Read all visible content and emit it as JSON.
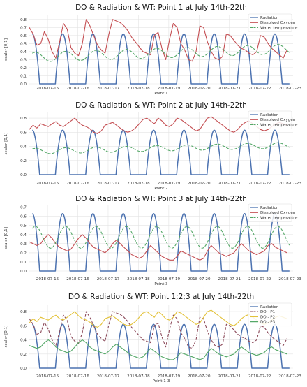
{
  "chart_data": [
    {
      "type": "line",
      "title": "DO & Radiation & WT: Point 1  at July 14th-22th",
      "xlabel": "Point 1",
      "ylabel": "scaler [0,1]",
      "x_ticks": [
        "2018-07-15",
        "2018-07-16",
        "2018-07-17",
        "2018-07-18",
        "2018-07-19",
        "2018-07-20",
        "2018-07-21",
        "2018-07-22",
        "2018-07-23"
      ],
      "y_ticks": [
        "0.0",
        "0.1",
        "0.2",
        "0.3",
        "0.4",
        "0.5",
        "0.6",
        "0.7",
        "0.8"
      ],
      "xlim_days": [
        14.4,
        23.1
      ],
      "ylim": [
        0,
        0.85
      ],
      "legend_position": "top-right",
      "series": [
        {
          "name": "Radiation",
          "color": "#4c72b0",
          "style": "solid",
          "kind": "radiation",
          "amplitude": 0.62
        },
        {
          "name": "Dissolved Oxygen",
          "color": "#c44e52",
          "style": "solid",
          "kind": "do",
          "start_day": 14.4,
          "step": 0.125,
          "values": [
            0.7,
            0.62,
            0.48,
            0.5,
            0.65,
            0.55,
            0.4,
            0.32,
            0.52,
            0.75,
            0.68,
            0.45,
            0.38,
            0.35,
            0.5,
            0.8,
            0.72,
            0.6,
            0.48,
            0.42,
            0.38,
            0.62,
            0.8,
            0.78,
            0.76,
            0.72,
            0.66,
            0.58,
            0.52,
            0.46,
            0.4,
            0.38,
            0.36,
            0.6,
            0.64,
            0.44,
            0.3,
            0.55,
            0.75,
            0.7,
            0.5,
            0.42,
            0.3,
            0.28,
            0.4,
            0.72,
            0.7,
            0.52,
            0.4,
            0.32,
            0.3,
            0.34,
            0.62,
            0.6,
            0.54,
            0.48,
            0.44,
            0.42,
            0.38,
            0.36,
            0.4,
            0.6,
            0.58,
            0.5,
            0.44,
            0.4,
            0.36,
            0.32,
            0.42,
            0.58,
            0.52,
            0.46,
            0.44,
            0.42,
            0.38,
            0.36,
            0.44,
            0.6,
            0.56,
            0.48,
            0.46,
            0.45,
            0.44,
            0.4,
            0.48,
            0.55,
            0.52,
            0.46,
            0.4,
            0.38,
            0.48,
            0.54,
            0.56,
            0.6,
            0.62,
            0.63,
            0.64,
            0.65,
            0.62,
            0.55,
            0.5,
            0.48,
            0.5,
            0.54,
            0.58,
            0.6,
            0.62,
            0.64,
            0.65,
            0.66,
            0.66,
            0.64,
            0.6
          ]
        },
        {
          "name": "Water temperature",
          "color": "#55a868",
          "style": "dashed",
          "kind": "wt",
          "base": 0.33,
          "trend": 0.012,
          "amplitude": 0.06
        }
      ]
    },
    {
      "type": "line",
      "title": "DO & Radiation & WT: Point 2  at July 14th-22th",
      "xlabel": "Point 2",
      "ylabel": "scaler [0,1]",
      "x_ticks": [
        "2018-07-15",
        "2018-07-16",
        "2018-07-17",
        "2018-07-18",
        "2018-07-19",
        "2018-07-20",
        "2018-07-21",
        "2018-07-22",
        "2018-07-23"
      ],
      "y_ticks": [
        "0.0",
        "0.2",
        "0.4",
        "0.6",
        "0.8"
      ],
      "xlim_days": [
        14.4,
        23.1
      ],
      "ylim": [
        0,
        0.88
      ],
      "legend_position": "top-right",
      "series": [
        {
          "name": "Radiation",
          "color": "#4c72b0",
          "style": "solid",
          "kind": "radiation",
          "amplitude": 0.63
        },
        {
          "name": "Dissolved Oxygen",
          "color": "#c44e52",
          "style": "solid",
          "kind": "do",
          "start_day": 14.4,
          "step": 0.125,
          "values": [
            0.64,
            0.7,
            0.66,
            0.72,
            0.7,
            0.68,
            0.72,
            0.75,
            0.7,
            0.68,
            0.72,
            0.76,
            0.8,
            0.74,
            0.7,
            0.68,
            0.65,
            0.6,
            0.58,
            0.62,
            0.7,
            0.72,
            0.74,
            0.7,
            0.66,
            0.62,
            0.6,
            0.62,
            0.66,
            0.72,
            0.78,
            0.8,
            0.76,
            0.72,
            0.8,
            0.76,
            0.7,
            0.68,
            0.72,
            0.8,
            0.78,
            0.74,
            0.7,
            0.66,
            0.62,
            0.64,
            0.72,
            0.8,
            0.82,
            0.78,
            0.74,
            0.7,
            0.66,
            0.62,
            0.6,
            0.64,
            0.7,
            0.74,
            0.76,
            0.72,
            0.68,
            0.64,
            0.62,
            0.64,
            0.68,
            0.72,
            0.74,
            0.72,
            0.7,
            0.66,
            0.62,
            0.6,
            0.62,
            0.66,
            0.7,
            0.74,
            0.72,
            0.68,
            0.64,
            0.6,
            0.58,
            0.6,
            0.64,
            0.68,
            0.7,
            0.66,
            0.62,
            0.58,
            0.55,
            0.54,
            0.56,
            0.6,
            0.64,
            0.62,
            0.58,
            0.54,
            0.52,
            0.5,
            0.48,
            0.52,
            0.58,
            0.6,
            0.58,
            0.54,
            0.5,
            0.48,
            0.46,
            0.5,
            0.56,
            0.6,
            0.64,
            0.66,
            0.64
          ]
        },
        {
          "name": "Water temperature",
          "color": "#55a868",
          "style": "dashed",
          "kind": "wt",
          "base": 0.33,
          "trend": 0.01,
          "amplitude": 0.04
        }
      ]
    },
    {
      "type": "line",
      "title": "DO & Radiation & WT: Point 3  at July 14th-22th",
      "xlabel": "Point 3",
      "ylabel": "scaler [0,1]",
      "x_ticks": [
        "2018-07-15",
        "2018-07-16",
        "2018-07-17",
        "2018-07-18",
        "2018-07-19",
        "2018-07-20",
        "2018-07-21",
        "2018-07-22",
        "2018-07-23"
      ],
      "y_ticks": [
        "0.0",
        "0.1",
        "0.2",
        "0.3",
        "0.4",
        "0.5",
        "0.6",
        "0.7"
      ],
      "xlim_days": [
        14.4,
        23.1
      ],
      "ylim": [
        0,
        0.72
      ],
      "legend_position": "top-right",
      "series": [
        {
          "name": "Radiation",
          "color": "#4c72b0",
          "style": "solid",
          "kind": "radiation",
          "amplitude": 0.63
        },
        {
          "name": "Dissolved Oxygen",
          "color": "#c44e52",
          "style": "solid",
          "kind": "do",
          "start_day": 14.4,
          "step": 0.125,
          "values": [
            0.32,
            0.3,
            0.28,
            0.3,
            0.36,
            0.4,
            0.36,
            0.3,
            0.26,
            0.24,
            0.22,
            0.24,
            0.3,
            0.36,
            0.4,
            0.36,
            0.3,
            0.26,
            0.24,
            0.22,
            0.2,
            0.24,
            0.3,
            0.34,
            0.3,
            0.26,
            0.22,
            0.18,
            0.16,
            0.14,
            0.16,
            0.22,
            0.28,
            0.24,
            0.2,
            0.16,
            0.14,
            0.12,
            0.12,
            0.16,
            0.22,
            0.2,
            0.18,
            0.16,
            0.14,
            0.12,
            0.14,
            0.22,
            0.28,
            0.24,
            0.2,
            0.18,
            0.16,
            0.18,
            0.2,
            0.26,
            0.3,
            0.26,
            0.22,
            0.2,
            0.18,
            0.2,
            0.22,
            0.28,
            0.3,
            0.26,
            0.24,
            0.22,
            0.2,
            0.22,
            0.24,
            0.3,
            0.32,
            0.28,
            0.26,
            0.24,
            0.22,
            0.24,
            0.26,
            0.32,
            0.34,
            0.3,
            0.26,
            0.24,
            0.22,
            0.24,
            0.3,
            0.36,
            0.4,
            0.36,
            0.32,
            0.28,
            0.26,
            0.24,
            0.26,
            0.32,
            0.36,
            0.32,
            0.28,
            0.26,
            0.24,
            0.26,
            0.3,
            0.36,
            0.4,
            0.36,
            0.32,
            0.3,
            0.28,
            0.3,
            0.32,
            0.3,
            0.26
          ]
        },
        {
          "name": "Water temperature",
          "color": "#55a868",
          "style": "dashed",
          "kind": "wt",
          "base": 0.37,
          "trend": 0.0,
          "amplitude": 0.12
        }
      ]
    },
    {
      "type": "line",
      "title": "DO & Radiation & WT: Point 1;2;3  at July 14th-22th",
      "xlabel": "Point 1-3",
      "ylabel": "scaler [0,1]",
      "x_ticks": [
        "2018-07-15",
        "2018-07-16",
        "2018-07-17",
        "2018-07-18",
        "2018-07-19",
        "2018-07-20",
        "2018-07-21",
        "2018-07-22",
        "2018-07-23"
      ],
      "y_ticks": [
        "0.0",
        "0.2",
        "0.4",
        "0.6",
        "0.8"
      ],
      "xlim_days": [
        14.4,
        23.1
      ],
      "ylim": [
        0,
        0.9
      ],
      "legend_position": "top-right",
      "series": [
        {
          "name": "Radiation",
          "color": "#4c72b0",
          "style": "solid",
          "kind": "radiation",
          "amplitude": 0.62
        },
        {
          "name": "DO - P1",
          "color": "#8c4a5a",
          "style": "dashed",
          "kind": "ref",
          "ref": [
            0,
            1
          ]
        },
        {
          "name": "DO - P2",
          "color": "#e3c23a",
          "style": "solid",
          "kind": "ref",
          "ref": [
            1,
            1
          ]
        },
        {
          "name": "DO - P3",
          "color": "#55a868",
          "style": "solid",
          "kind": "ref",
          "ref": [
            2,
            1
          ]
        }
      ]
    }
  ]
}
